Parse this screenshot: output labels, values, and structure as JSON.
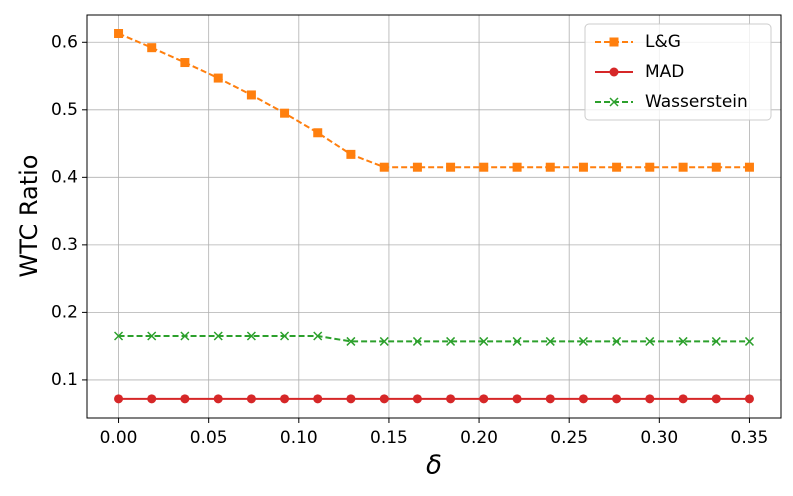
{
  "chart_data": {
    "type": "line",
    "x_label": "δ",
    "y_label": "WTC Ratio",
    "x": [
      0,
      0.0184,
      0.0368,
      0.0553,
      0.0737,
      0.0921,
      0.1105,
      0.1289,
      0.1474,
      0.1658,
      0.1842,
      0.2026,
      0.2211,
      0.2395,
      0.2579,
      0.2763,
      0.2947,
      0.3132,
      0.3316,
      0.35
    ],
    "series": [
      {
        "name": "L&G",
        "color": "#ff7f0e",
        "marker": "square",
        "dash": true,
        "values": [
          0.613,
          0.592,
          0.57,
          0.547,
          0.522,
          0.495,
          0.466,
          0.434,
          0.415,
          0.415,
          0.415,
          0.415,
          0.415,
          0.415,
          0.415,
          0.415,
          0.415,
          0.415,
          0.415,
          0.415
        ]
      },
      {
        "name": "MAD",
        "color": "#d62728",
        "marker": "circle",
        "dash": false,
        "values": [
          0.072,
          0.072,
          0.072,
          0.072,
          0.072,
          0.072,
          0.072,
          0.072,
          0.072,
          0.072,
          0.072,
          0.072,
          0.072,
          0.072,
          0.072,
          0.072,
          0.072,
          0.072,
          0.072,
          0.072
        ]
      },
      {
        "name": "Wasserstein",
        "color": "#2ca02c",
        "marker": "x",
        "dash": true,
        "values": [
          0.165,
          0.165,
          0.165,
          0.165,
          0.165,
          0.165,
          0.165,
          0.157,
          0.157,
          0.157,
          0.157,
          0.157,
          0.157,
          0.157,
          0.157,
          0.157,
          0.157,
          0.157,
          0.157,
          0.157
        ]
      }
    ],
    "xlim": [
      -0.0175,
      0.3675
    ],
    "ylim": [
      0.0436,
      0.6404
    ],
    "xticks": [
      {
        "value": 0,
        "label": "0.00"
      },
      {
        "value": 0.05,
        "label": "0.05"
      },
      {
        "value": 0.1,
        "label": "0.10"
      },
      {
        "value": 0.15,
        "label": "0.15"
      },
      {
        "value": 0.2,
        "label": "0.20"
      },
      {
        "value": 0.25,
        "label": "0.25"
      },
      {
        "value": 0.3,
        "label": "0.30"
      },
      {
        "value": 0.35,
        "label": "0.35"
      }
    ],
    "yticks": [
      0.1,
      0.2,
      0.3,
      0.4,
      0.5,
      0.6
    ],
    "grid": true,
    "legend": "upper right"
  }
}
